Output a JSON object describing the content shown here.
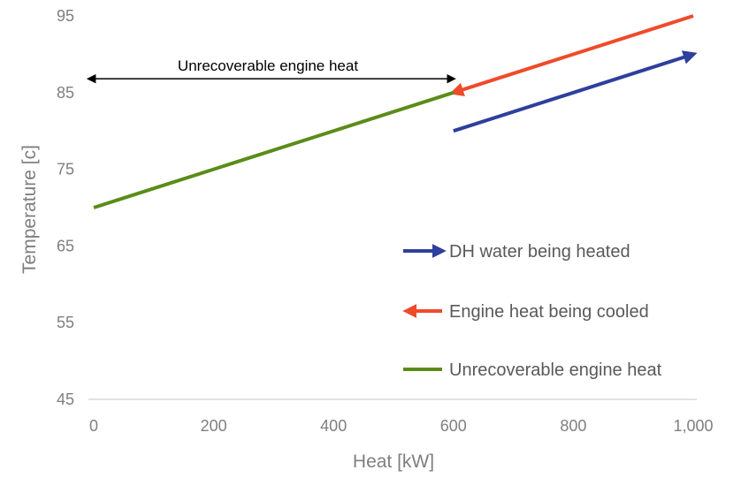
{
  "chart_data": {
    "type": "line",
    "title": "",
    "xlabel": "Heat [kW]",
    "ylabel": "Temperature [c]",
    "xlim": [
      0,
      1000
    ],
    "ylim": [
      45,
      95
    ],
    "x_ticks": [
      {
        "value": 0,
        "label": "0"
      },
      {
        "value": 200,
        "label": "200"
      },
      {
        "value": 400,
        "label": "400"
      },
      {
        "value": 600,
        "label": "600"
      },
      {
        "value": 800,
        "label": "800"
      },
      {
        "value": 1000,
        "label": "1,000"
      }
    ],
    "y_ticks": [
      {
        "value": 45,
        "label": "45"
      },
      {
        "value": 55,
        "label": "55"
      },
      {
        "value": 65,
        "label": "65"
      },
      {
        "value": 75,
        "label": "75"
      },
      {
        "value": 85,
        "label": "85"
      },
      {
        "value": 95,
        "label": "95"
      }
    ],
    "grid": false,
    "legend_position": "bottom-right",
    "series": [
      {
        "name": "DH water being heated",
        "color": "#2e3f9c",
        "arrow": "end",
        "points": [
          [
            600,
            80
          ],
          [
            1000,
            90
          ]
        ]
      },
      {
        "name": "Engine heat being cooled",
        "color": "#ee4b2b",
        "arrow": "end",
        "points": [
          [
            1000,
            95
          ],
          [
            600,
            85
          ]
        ]
      },
      {
        "name": "Unrecoverable engine heat",
        "color": "#5b8c19",
        "arrow": "none",
        "points": [
          [
            0,
            70
          ],
          [
            600,
            85
          ]
        ]
      }
    ],
    "annotations": [
      {
        "text": "Unrecoverable engine heat",
        "from": [
          0,
          86.8
        ],
        "to": [
          600,
          86.8
        ]
      }
    ]
  }
}
